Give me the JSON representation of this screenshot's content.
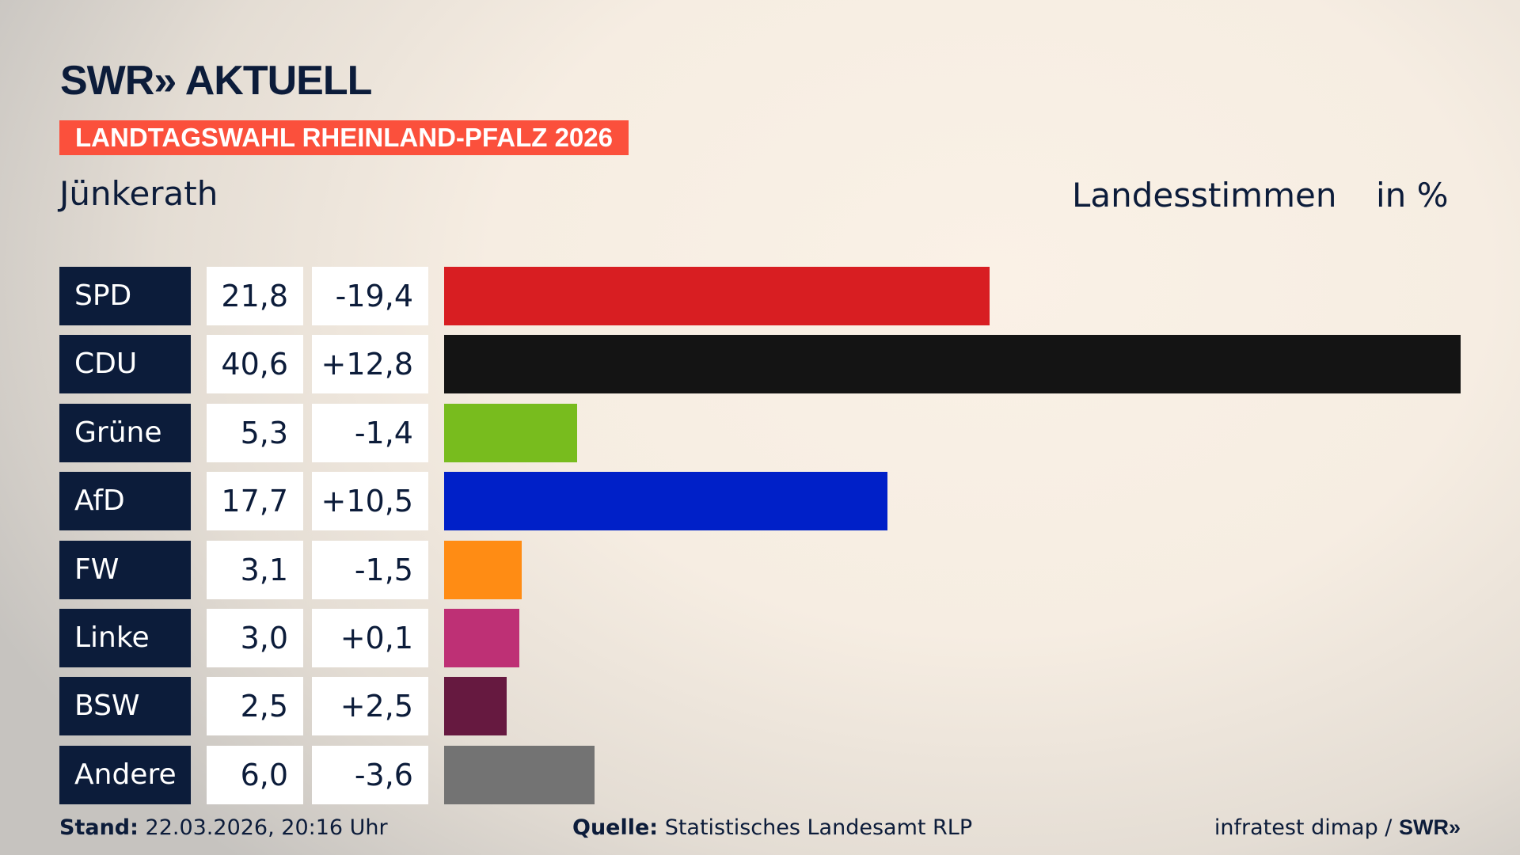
{
  "logo": "SWR» AKTUELL",
  "tag": "LANDTAGSWAHL RHEINLAND-PFALZ 2026",
  "place": "Jünkerath",
  "vote_type": "Landesstimmen",
  "unit": "in %",
  "footer": {
    "stand_label": "Stand:",
    "stand_value": "22.03.2026, 20:16 Uhr",
    "source_label": "Quelle:",
    "source_value": "Statistisches Landesamt RLP",
    "credit": "infratest dimap / ",
    "credit_logo": "SWR»"
  },
  "chart_data": {
    "type": "bar",
    "orientation": "horizontal",
    "categories": [
      "SPD",
      "CDU",
      "Grüne",
      "AfD",
      "FW",
      "Linke",
      "BSW",
      "Andere"
    ],
    "values": [
      21.8,
      40.6,
      5.3,
      17.7,
      3.1,
      3.0,
      2.5,
      6.0
    ],
    "value_labels": [
      "21,8",
      "40,6",
      "5,3",
      "17,7",
      "3,1",
      "3,0",
      "2,5",
      "6,0"
    ],
    "diff_labels": [
      "-19,4",
      "+12,8",
      "-1,4",
      "+10,5",
      "-1,5",
      "+0,1",
      "+2,5",
      "-3,6"
    ],
    "diffs": [
      -19.4,
      12.8,
      -1.4,
      10.5,
      -1.5,
      0.1,
      2.5,
      -3.6
    ],
    "colors": [
      "#d81e22",
      "#141414",
      "#78bc1e",
      "#0020c8",
      "#ff8c14",
      "#be3075",
      "#661940",
      "#737373"
    ],
    "grid": false
  }
}
